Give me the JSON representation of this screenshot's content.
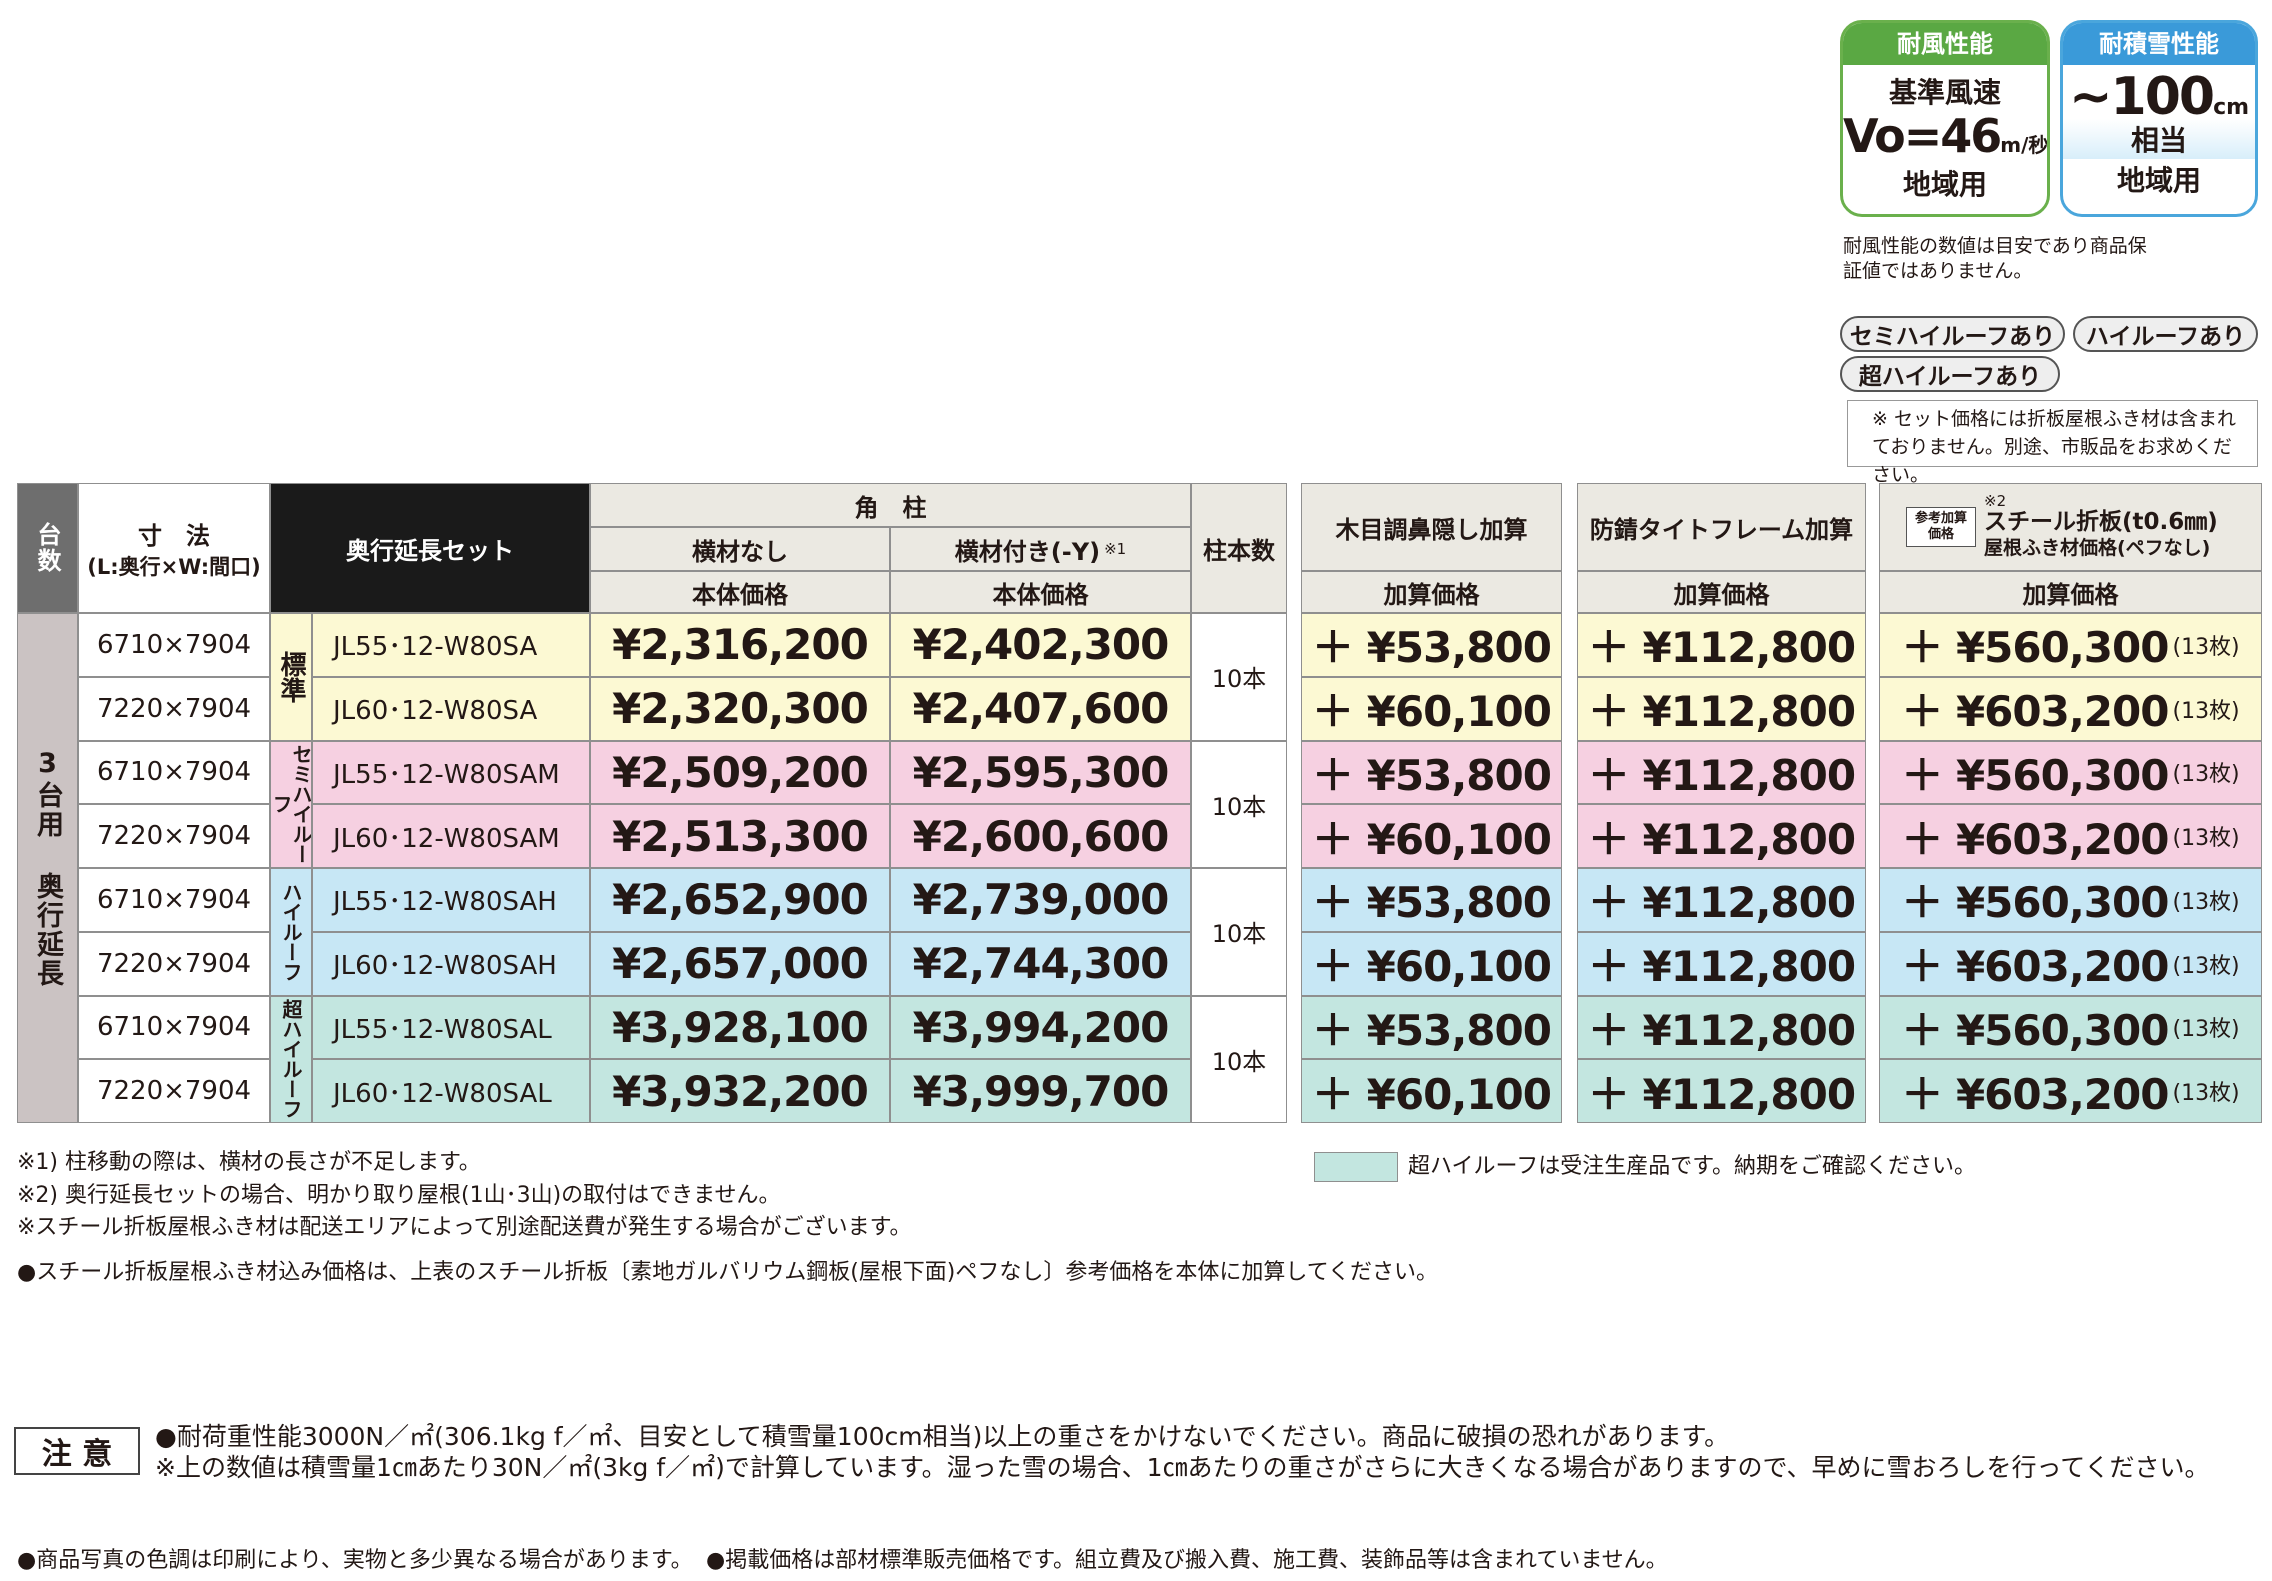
{
  "badges": {
    "wind": {
      "title": "耐風性能",
      "line1": "基準風速",
      "value": "Vo=46",
      "unit": "m/秒",
      "line2": "地域用"
    },
    "snow": {
      "title": "耐積雪性能",
      "value": "~100",
      "unit": "cm",
      "line1": "相当",
      "line2": "地域用"
    }
  },
  "badge_note": "耐風性能の数値は目安であり商品保証値ではありません。",
  "roof_tags": [
    "セミハイルーフあり",
    "ハイルーフあり",
    "超ハイルーフあり"
  ],
  "set_note": "※ セット価格には折板屋根ふき材は含まれておりません。別途、市販品をお求めください。",
  "table": {
    "header": {
      "count": "台数",
      "size_title": "寸　法",
      "size_sub": "(L:奥行×W:間口)",
      "set": "奥行延長セット",
      "pillar": "角　柱",
      "no_beam": "横材なし",
      "with_beam": "横材付き(-Y)",
      "with_beam_note": "※1",
      "body_price": "本体価格",
      "body_price_2": "本体価格",
      "posts": "柱本数",
      "fascia": "木目調鼻隠し加算",
      "frame": "防錆タイトフレーム加算",
      "steel_ref": "参考加算価格",
      "steel_note": "※2",
      "steel_title": "スチール折板(t0.6㎜)",
      "steel_sub": "屋根ふき材価格(ペフなし)",
      "add_price": "加算価格",
      "add_price_2": "加算価格",
      "add_price_3": "加算価格"
    },
    "side_label": "3台用 奥行延長",
    "groups": [
      {
        "label": "標準",
        "color": "#fcf9d3",
        "posts": "10本",
        "rows": [
          {
            "size": "6710×7904",
            "model": "JL55･12-W80SA",
            "price": "¥2,316,200",
            "price_y": "¥2,402,300",
            "fascia": "＋ ¥53,800",
            "frame": "＋ ¥112,800",
            "steel": "＋ ¥560,300",
            "sheets": "(13枚)"
          },
          {
            "size": "7220×7904",
            "model": "JL60･12-W80SA",
            "price": "¥2,320,300",
            "price_y": "¥2,407,600",
            "fascia": "＋ ¥60,100",
            "frame": "＋ ¥112,800",
            "steel": "＋ ¥603,200",
            "sheets": "(13枚)"
          }
        ]
      },
      {
        "label": "セミハイルーフ",
        "color": "#f6d0e1",
        "posts": "10本",
        "rows": [
          {
            "size": "6710×7904",
            "model": "JL55･12-W80SAM",
            "price": "¥2,509,200",
            "price_y": "¥2,595,300",
            "fascia": "＋ ¥53,800",
            "frame": "＋ ¥112,800",
            "steel": "＋ ¥560,300",
            "sheets": "(13枚)"
          },
          {
            "size": "7220×7904",
            "model": "JL60･12-W80SAM",
            "price": "¥2,513,300",
            "price_y": "¥2,600,600",
            "fascia": "＋ ¥60,100",
            "frame": "＋ ¥112,800",
            "steel": "＋ ¥603,200",
            "sheets": "(13枚)"
          }
        ]
      },
      {
        "label": "ハイルーフ",
        "color": "#c7e7f5",
        "posts": "10本",
        "rows": [
          {
            "size": "6710×7904",
            "model": "JL55･12-W80SAH",
            "price": "¥2,652,900",
            "price_y": "¥2,739,000",
            "fascia": "＋ ¥53,800",
            "frame": "＋ ¥112,800",
            "steel": "＋ ¥560,300",
            "sheets": "(13枚)"
          },
          {
            "size": "7220×7904",
            "model": "JL60･12-W80SAH",
            "price": "¥2,657,000",
            "price_y": "¥2,744,300",
            "fascia": "＋ ¥60,100",
            "frame": "＋ ¥112,800",
            "steel": "＋ ¥603,200",
            "sheets": "(13枚)"
          }
        ]
      },
      {
        "label": "超ハイルーフ",
        "color": "#c3e6e0",
        "posts": "10本",
        "rows": [
          {
            "size": "6710×7904",
            "model": "JL55･12-W80SAL",
            "price": "¥3,928,100",
            "price_y": "¥3,994,200",
            "fascia": "＋ ¥53,800",
            "frame": "＋ ¥112,800",
            "steel": "＋ ¥560,300",
            "sheets": "(13枚)"
          },
          {
            "size": "7220×7904",
            "model": "JL60･12-W80SAL",
            "price": "¥3,932,200",
            "price_y": "¥3,999,700",
            "fascia": "＋ ¥60,100",
            "frame": "＋ ¥112,800",
            "steel": "＋ ¥603,200",
            "sheets": "(13枚)"
          }
        ]
      }
    ]
  },
  "footnotes": [
    "※1) 柱移動の際は、横材の長さが不足します。",
    "※2) 奥行延長セットの場合、明かり取り屋根(1山･3山)の取付はできません。",
    "※スチール折板屋根ふき材は配送エリアによって別途配送費が発生する場合がございます。",
    "●スチール折板屋根ふき材込み価格は、上表のスチール折板〔素地ガルバリウム鋼板(屋根下面)ペフなし〕参考価格を本体に加算してください。"
  ],
  "legend": "超ハイルーフは受注生産品です。納期をご確認ください。",
  "caution": {
    "label": "注 意",
    "lines": [
      "●耐荷重性能3000N／㎡(306.1kg f／㎡、目安として積雪量100cm相当)以上の重さをかけないでください。商品に破損の恐れがあります。",
      "※上の数値は積雪量1㎝あたり30N／㎡(3kg f／㎡)で計算しています。湿った雪の場合、1㎝あたりの重さがさらに大きくなる場合がありますので、早めに雪おろしを行ってください。"
    ]
  },
  "bottom_notes": [
    "●商品写真の色調は印刷により、実物と多少異なる場合があります。",
    "●掲載価格は部材標準販売価格です。組立費及び搬入費、施工費、装飾品等は含まれていません。"
  ]
}
